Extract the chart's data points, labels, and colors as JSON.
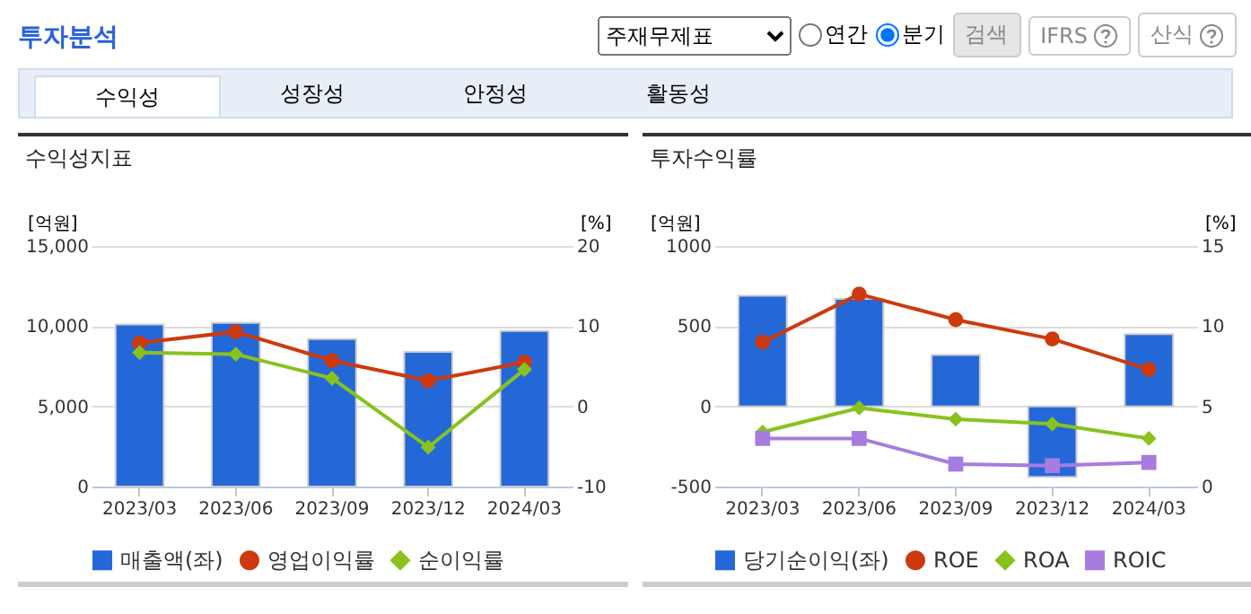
{
  "chart_data": [
    {
      "type": "other",
      "title": "투자분석",
      "annotations": [
        "주재무제표",
        "연간",
        "분기",
        "검색",
        "IFRS",
        "산식",
        "수익성",
        "성장성",
        "안정성",
        "활동성"
      ]
    },
    {
      "type": "bar",
      "title": "수익성지표",
      "ylabel": "[억원]",
      "y2label": "[%]",
      "categories": [
        "2023/03",
        "2023/06",
        "2023/09",
        "2023/12",
        "2024/03"
      ],
      "series": [
        {
          "name": "매출액(좌)",
          "type": "bar",
          "color": "#2468d8",
          "values": [
            10100,
            10200,
            9200,
            8400,
            9700
          ]
        },
        {
          "name": "영업이익률",
          "type": "line",
          "axis": "y2",
          "marker": "circle",
          "color": "#cc3a0e",
          "values": [
            7.9,
            9.3,
            5.7,
            3.2,
            5.5
          ]
        },
        {
          "name": "순이익률",
          "type": "line",
          "axis": "y2",
          "marker": "diamond",
          "color": "#88c21e",
          "values": [
            6.7,
            6.5,
            3.5,
            -5.1,
            4.6
          ]
        }
      ],
      "ylim": [
        0,
        15000
      ],
      "yticks": [
        0,
        {
          "value": 5000,
          "label": "5,000"
        },
        {
          "value": 10000,
          "label": "10,000"
        },
        {
          "value": 15000,
          "label": "15,000"
        }
      ],
      "y2lim": [
        -10,
        20
      ],
      "y2ticks": [
        -10,
        0,
        10,
        20
      ],
      "grid": "y",
      "legend": "bottom"
    },
    {
      "type": "bar",
      "title": "투자수익률",
      "ylabel": "[억원]",
      "y2label": "[%]",
      "categories": [
        "2023/03",
        "2023/06",
        "2023/09",
        "2023/12",
        "2024/03"
      ],
      "series": [
        {
          "name": "당기순이익(좌)",
          "type": "bar",
          "color": "#2468d8",
          "values": [
            690,
            670,
            320,
            -440,
            450
          ]
        },
        {
          "name": "ROE",
          "type": "line",
          "axis": "y2",
          "marker": "circle",
          "color": "#cc3a0e",
          "values": [
            9.0,
            12.0,
            10.4,
            9.2,
            7.3
          ]
        },
        {
          "name": "ROA",
          "type": "line",
          "axis": "y2",
          "marker": "diamond",
          "color": "#88c21e",
          "values": [
            3.4,
            4.9,
            4.2,
            3.9,
            3.0
          ]
        },
        {
          "name": "ROIC",
          "type": "line",
          "axis": "y2",
          "marker": "square",
          "color": "#a77be0",
          "values": [
            3.0,
            3.0,
            1.4,
            1.3,
            1.5
          ]
        }
      ],
      "ylim": [
        -500,
        1000
      ],
      "yticks": [
        -500,
        0,
        500,
        1000
      ],
      "y2lim": [
        0,
        15
      ],
      "y2ticks": [
        0,
        5,
        10,
        15
      ],
      "grid": "y",
      "legend": "bottom"
    }
  ]
}
